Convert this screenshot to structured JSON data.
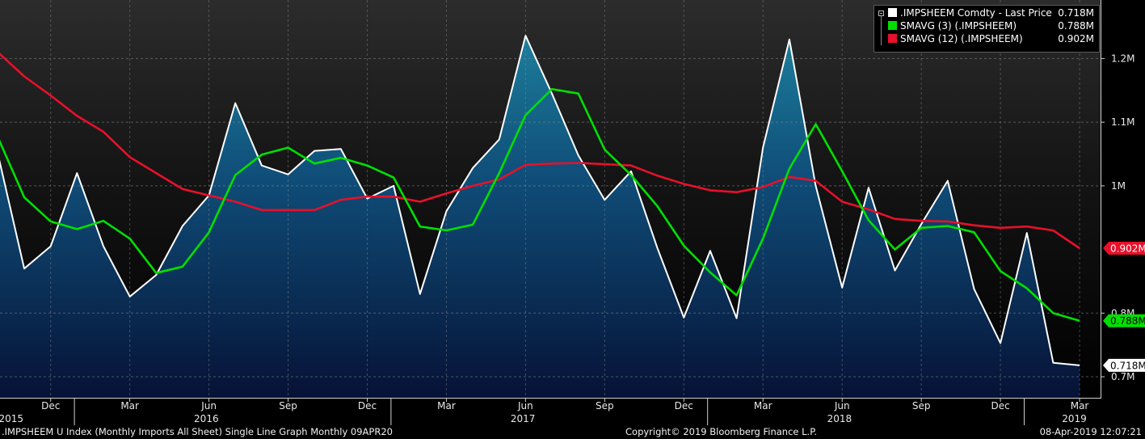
{
  "footer": {
    "description": ".IMPSHEEM U Index (Monthly Imports All Sheet) Single Line Graph  Monthly 09APR20",
    "copyright": "Copyright© 2019 Bloomberg Finance L.P.",
    "timestamp": "08-Apr-2019 12:07:21"
  },
  "legend": [
    {
      "label": ".IMPSHEEM Comdty - Last Price",
      "value": "0.718M",
      "color": "#ffffff"
    },
    {
      "label": "SMAVG (3) (.IMPSHEEM)",
      "value": "0.788M",
      "color": "#00e000"
    },
    {
      "label": "SMAVG (12) (.IMPSHEEM)",
      "value": "0.902M",
      "color": "#e8102a"
    }
  ],
  "chart_data": {
    "type": "line",
    "x": [
      "2015-10",
      "2015-11",
      "2015-12",
      "2016-01",
      "2016-02",
      "2016-03",
      "2016-04",
      "2016-05",
      "2016-06",
      "2016-07",
      "2016-08",
      "2016-09",
      "2016-10",
      "2016-11",
      "2016-12",
      "2017-01",
      "2017-02",
      "2017-03",
      "2017-04",
      "2017-05",
      "2017-06",
      "2017-07",
      "2017-08",
      "2017-09",
      "2017-10",
      "2017-11",
      "2017-12",
      "2018-01",
      "2018-02",
      "2018-03",
      "2018-04",
      "2018-05",
      "2018-06",
      "2018-07",
      "2018-08",
      "2018-09",
      "2018-10",
      "2018-11",
      "2018-12",
      "2019-01",
      "2019-02",
      "2019-03"
    ],
    "series": [
      {
        "name": ".IMPSHEEM Comdty - Last Price",
        "color": "#ffffff",
        "fill": true,
        "values": [
          1.05,
          0.87,
          0.905,
          1.02,
          0.905,
          0.826,
          0.86,
          0.937,
          0.985,
          1.13,
          1.032,
          1.018,
          1.055,
          1.058,
          0.98,
          1.0,
          0.83,
          0.96,
          1.028,
          1.073,
          1.236,
          1.145,
          1.048,
          0.978,
          1.023,
          0.902,
          0.793,
          0.898,
          0.792,
          1.06,
          1.23,
          1.0,
          0.84,
          0.997,
          0.867,
          0.94,
          1.008,
          0.838,
          0.753,
          0.926,
          0.722,
          0.718
        ]
      },
      {
        "name": "SMAVG (3) (.IMPSHEEM)",
        "color": "#00e000",
        "values": [
          1.076,
          0.982,
          0.944,
          0.932,
          0.945,
          0.917,
          0.863,
          0.873,
          0.927,
          1.017,
          1.049,
          1.06,
          1.035,
          1.044,
          1.032,
          1.013,
          0.936,
          0.93,
          0.939,
          1.02,
          1.111,
          1.152,
          1.145,
          1.057,
          1.017,
          0.968,
          0.906,
          0.864,
          0.828,
          0.917,
          1.027,
          1.097,
          1.023,
          0.946,
          0.9,
          0.934,
          0.937,
          0.927,
          0.866,
          0.839,
          0.8,
          0.788
        ]
      },
      {
        "name": "SMAVG (12) (.IMPSHEEM)",
        "color": "#e8102a",
        "values": [
          1.21,
          1.172,
          1.142,
          1.11,
          1.085,
          1.045,
          1.02,
          0.995,
          0.985,
          0.975,
          0.962,
          0.962,
          0.962,
          0.978,
          0.983,
          0.983,
          0.975,
          0.988,
          1.0,
          1.01,
          1.033,
          1.035,
          1.036,
          1.034,
          1.032,
          1.016,
          1.003,
          0.993,
          0.99,
          0.998,
          1.014,
          1.008,
          0.975,
          0.963,
          0.948,
          0.945,
          0.944,
          0.938,
          0.934,
          0.936,
          0.93,
          0.902
        ]
      }
    ],
    "y_axis": {
      "position": "right",
      "ticks": [
        {
          "value": 0.7,
          "label": "0.7M"
        },
        {
          "value": 0.8,
          "label": "0.8M"
        },
        {
          "value": 1.0,
          "label": "1M"
        },
        {
          "value": 1.1,
          "label": "1.1M"
        },
        {
          "value": 1.2,
          "label": "1.2M"
        }
      ],
      "ylim": [
        0.667,
        1.292
      ],
      "last_value_labels": [
        {
          "value": 0.902,
          "label": "0.902M",
          "bg": "#e8102a",
          "fg": "#ffffff"
        },
        {
          "value": 0.788,
          "label": "0.788M",
          "bg": "#00e000",
          "fg": "#000000"
        },
        {
          "value": 0.718,
          "label": "0.718M",
          "bg": "#ffffff",
          "fg": "#000000"
        }
      ]
    },
    "x_axis": {
      "month_ticks": [
        {
          "index": 2,
          "label": "Dec"
        },
        {
          "index": 5,
          "label": "Mar"
        },
        {
          "index": 8,
          "label": "Jun"
        },
        {
          "index": 11,
          "label": "Sep"
        },
        {
          "index": 14,
          "label": "Dec"
        },
        {
          "index": 17,
          "label": "Mar"
        },
        {
          "index": 20,
          "label": "Jun"
        },
        {
          "index": 23,
          "label": "Sep"
        },
        {
          "index": 26,
          "label": "Dec"
        },
        {
          "index": 29,
          "label": "Mar"
        },
        {
          "index": 32,
          "label": "Jun"
        },
        {
          "index": 35,
          "label": "Sep"
        },
        {
          "index": 38,
          "label": "Dec"
        },
        {
          "index": 41,
          "label": "Mar"
        }
      ],
      "year_labels": [
        {
          "index": 0.5,
          "label": "2015"
        },
        {
          "index": 7.9,
          "label": "2016"
        },
        {
          "index": 19.9,
          "label": "2017"
        },
        {
          "index": 31.9,
          "label": "2018"
        },
        {
          "index": 40.8,
          "label": "2019"
        }
      ],
      "year_dividers": [
        2.9,
        14.9,
        26.9,
        38.9
      ]
    },
    "grid": true,
    "legend_position": "top-right",
    "background": "#000000"
  }
}
